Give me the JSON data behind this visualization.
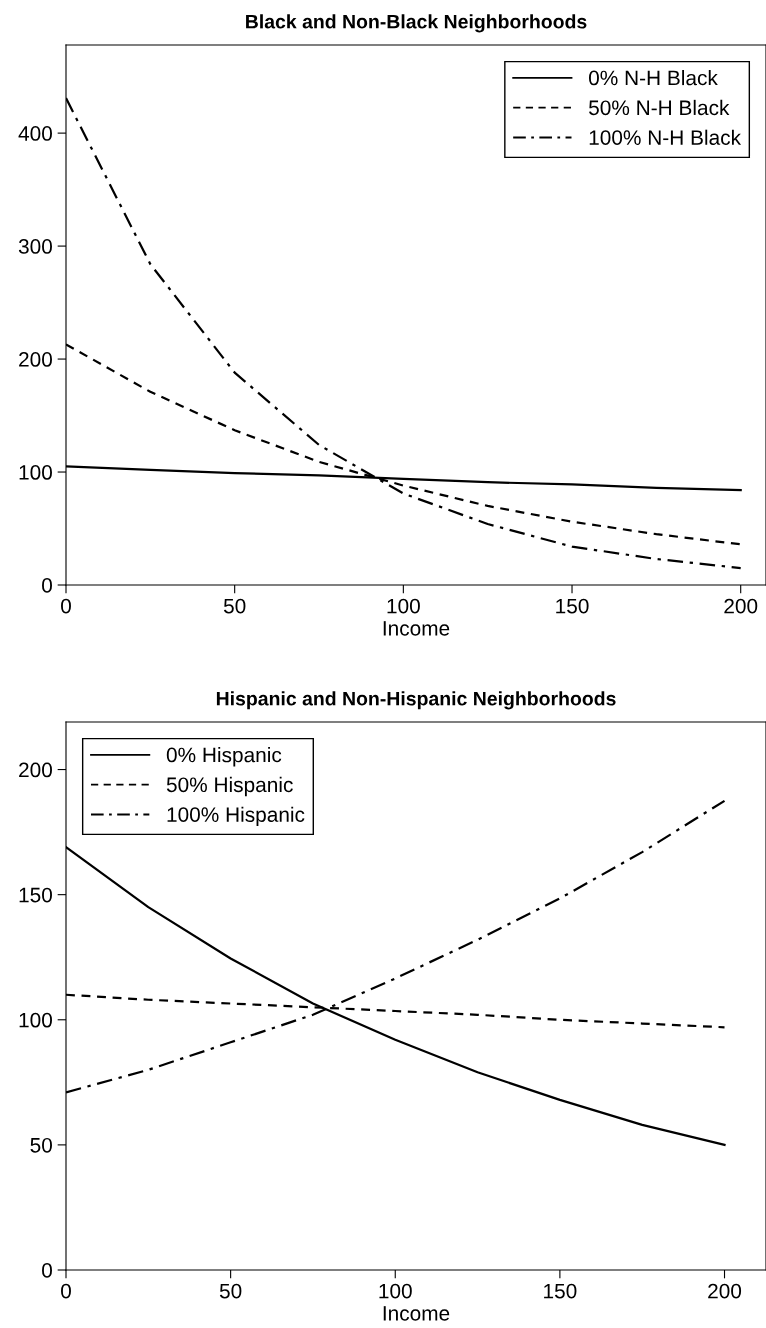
{
  "chart_data": [
    {
      "type": "line",
      "title": "Black and Non-Black Neighborhoods",
      "xlabel": "Income",
      "x": [
        0,
        25,
        50,
        75,
        100,
        125,
        150,
        175,
        200
      ],
      "xlim": [
        0,
        207.5
      ],
      "xticks": [
        0,
        50,
        100,
        150,
        200
      ],
      "ylim": [
        0,
        478
      ],
      "yticks": [
        0,
        100,
        200,
        300,
        400
      ],
      "legend": "top right",
      "grid": false,
      "marker": "none",
      "series": [
        {
          "name": "0% N-H Black",
          "color": "#000000",
          "line_style": "solid",
          "values": [
            105,
            102,
            99,
            97,
            94,
            91,
            89,
            86,
            84
          ]
        },
        {
          "name": "50% N-H Black",
          "color": "#000000",
          "line_style": "dashed",
          "values": [
            213,
            171,
            137,
            109,
            88,
            70,
            56,
            45,
            36
          ]
        },
        {
          "name": "100% N-H Black",
          "color": "#000000",
          "line_style": "dashdot",
          "values": [
            431,
            284,
            188,
            124,
            81,
            54,
            34,
            23,
            15
          ]
        }
      ]
    },
    {
      "type": "line",
      "title": "Hispanic and Non-Hispanic Neighborhoods",
      "xlabel": "Income",
      "x": [
        0,
        25,
        50,
        75,
        100,
        125,
        150,
        175,
        200
      ],
      "xlim": [
        0,
        212.6
      ],
      "xticks": [
        0,
        50,
        100,
        150,
        200
      ],
      "ylim": [
        0,
        219
      ],
      "yticks": [
        0,
        50,
        100,
        150,
        200
      ],
      "legend": "top left",
      "grid": false,
      "marker": "none",
      "series": [
        {
          "name": "0% Hispanic",
          "color": "#000000",
          "line_style": "solid",
          "values": [
            169,
            145,
            124.5,
            106.5,
            92,
            79,
            68,
            58,
            50
          ]
        },
        {
          "name": "50% Hispanic",
          "color": "#000000",
          "line_style": "dashed",
          "values": [
            110,
            108,
            106.5,
            105,
            103.5,
            102,
            100,
            98.5,
            97
          ]
        },
        {
          "name": "100% Hispanic",
          "color": "#000000",
          "line_style": "dashdot",
          "values": [
            71,
            80,
            91,
            102,
            116.5,
            132,
            148.5,
            167,
            187.5
          ]
        }
      ]
    }
  ]
}
